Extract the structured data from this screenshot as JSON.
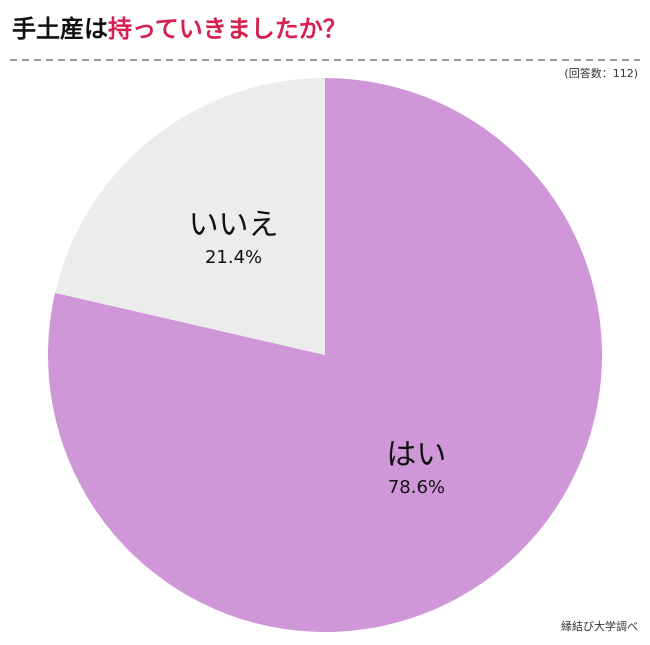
{
  "chart_data": {
    "type": "pie",
    "title": [
      "手土産は",
      "持っていきましたか？"
    ],
    "note": "(回答数：112)",
    "source": "縁結び大学調べ",
    "categories": [
      "はい",
      "いいえ"
    ],
    "values": [
      78.6,
      21.4
    ],
    "value_labels": [
      "78.6%",
      "21.4%"
    ],
    "colors": [
      "#cf97d8",
      "#ececec"
    ],
    "title_colors": [
      "#111111",
      "#d6204f"
    ]
  }
}
